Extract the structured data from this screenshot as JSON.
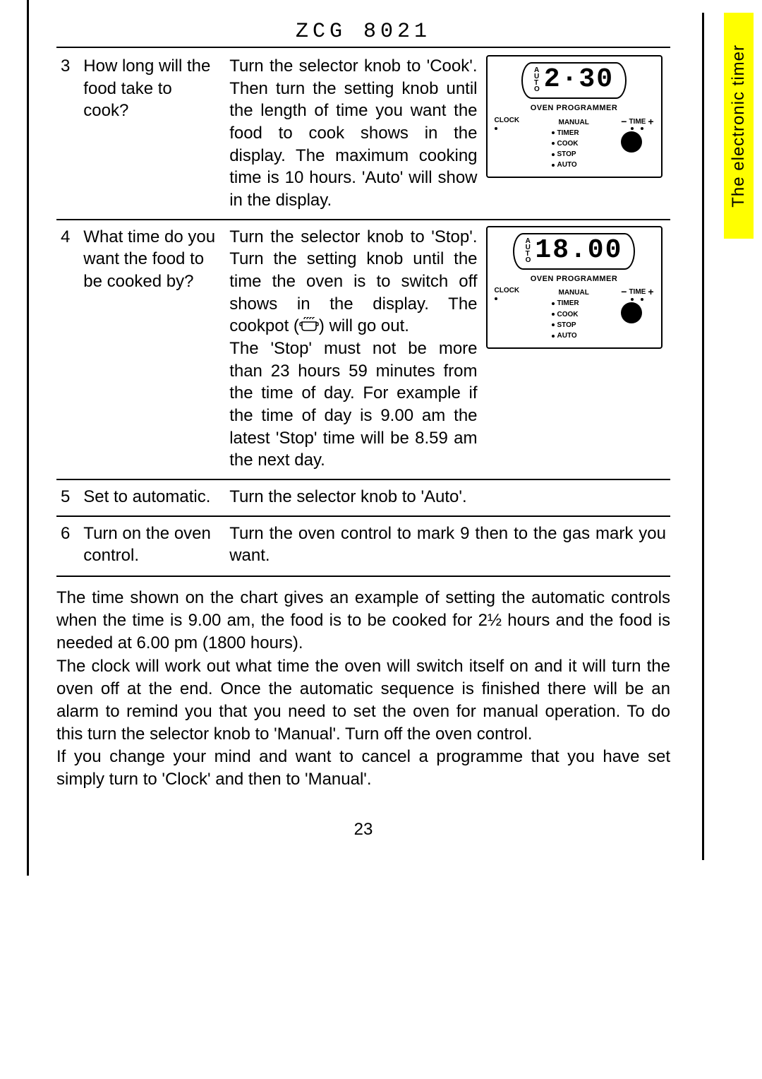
{
  "model": "ZCG 8021",
  "sidebar_label": "The electronic timer",
  "page_number": "23",
  "display_labels": {
    "programmer": "OVEN  PROGRAMMER",
    "clock": "CLOCK",
    "manual": "MANUAL",
    "timer": "TIMER",
    "cook": "COOK",
    "stop": "STOP",
    "auto": "AUTO",
    "time": "TIME"
  },
  "steps": [
    {
      "num": "3",
      "question": "How long will the food take to cook?",
      "answer": "Turn the selector knob to 'Cook'. Then turn the setting knob until the length of time you want the food to cook shows in the display. The maximum cooking time is 10 hours. 'Auto' will show in the display.",
      "lcd": "2·30",
      "has_panel": true
    },
    {
      "num": "4",
      "question": "What time do you want the food to be cooked by?",
      "answer_pre": "Turn the selector knob to 'Stop'. Turn the setting knob until the time the oven is to switch off shows in the display. The cookpot (",
      "answer_post": ") will go out.\nThe 'Stop' must not be more than 23 hours 59 minutes from the time of day. For example if the time of day is 9.00 am the latest 'Stop' time will be 8.59 am the next day.",
      "lcd": "18.00",
      "has_panel": true,
      "has_cookpot": true
    },
    {
      "num": "5",
      "question": "Set to automatic.",
      "answer": "Turn the selector knob to 'Auto'.",
      "has_panel": false
    },
    {
      "num": "6",
      "question": "Turn on the oven control.",
      "answer": "Turn the oven control to mark 9 then to the gas mark you want.",
      "has_panel": false
    }
  ],
  "body_paragraphs": [
    "The time shown on the chart gives an example of setting the automatic controls when the time is 9.00 am, the food is to be cooked for 2½ hours and the food is needed at 6.00 pm (1800 hours).",
    "The clock will work out what time the oven will switch itself on and it will turn the oven off at the end. Once the automatic sequence is finished there will be an alarm to remind you that you need to set the oven for manual operation. To do this turn the selector knob to 'Manual'. Turn off the oven control.",
    " If you change your mind and want to cancel a programme that you have set simply turn to 'Clock' and then to 'Manual'."
  ],
  "colors": {
    "highlight": "#ffff00",
    "text": "#000000",
    "bg": "#ffffff"
  }
}
